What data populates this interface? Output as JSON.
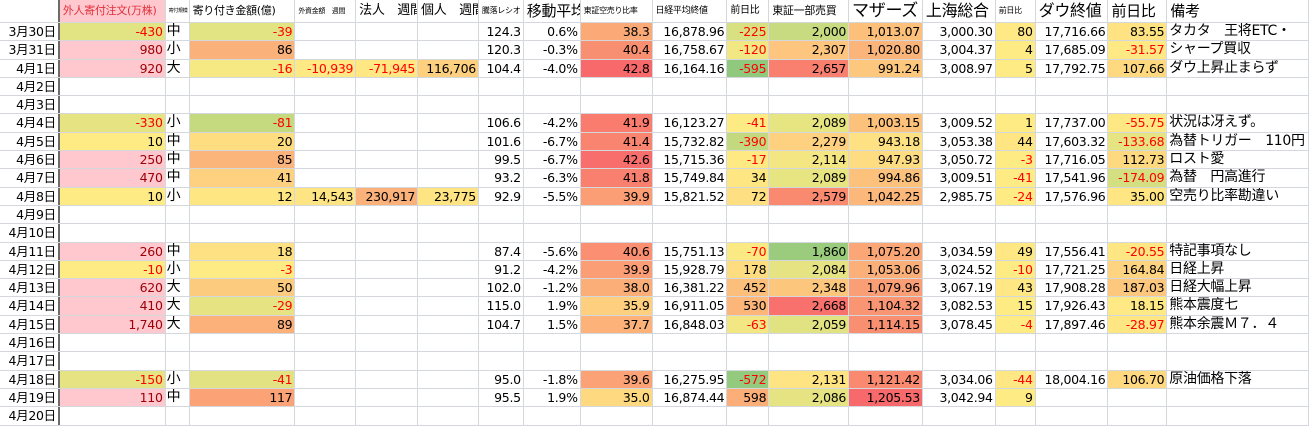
{
  "headers": [
    "",
    "外人寄付注文(万株)",
    "寄付規模",
    "寄り付き金額(億)",
    "外資金額　週間",
    "法人　週間",
    "個人　週間",
    "騰落レシオ",
    "移動平均",
    "東証空売り比率",
    "日経平均終値",
    "前日比",
    "東証一部売買",
    "マザーズ",
    "上海総合",
    "前日比",
    "ダウ終値",
    "前日比",
    "備考"
  ],
  "header_bg": {
    "1": "#ffc7ce"
  },
  "colors": {
    "pink": "#ffc7ce",
    "pink_text": "#9c0006",
    "negative_text": "#ff0000",
    "gridline": "#d4d7dc"
  },
  "rows": [
    {
      "cells": [
        "3月30日",
        "-430",
        "中",
        "-39",
        "",
        "",
        "",
        "124.3",
        "0.6%",
        "38.3",
        "16,878.96",
        "-225",
        "2,000",
        "1,013.07",
        "3,000.30",
        "80",
        "17,716.66",
        "83.55",
        "タカタ　王将ETC・"
      ],
      "bg": {
        "1": "#e2e383",
        "3": "#e2e383",
        "9": "#fbaa77",
        "11": "#d8e081",
        "12": "#c9db80",
        "13": "#fcc07b",
        "15": "#ffe984",
        "17": "#ffe383"
      }
    },
    {
      "cells": [
        "3月31日",
        "980",
        "小",
        "86",
        "",
        "",
        "",
        "120.3",
        "-0.3%",
        "40.4",
        "16,758.67",
        "-120",
        "2,307",
        "1,020.80",
        "3,004.37",
        "4",
        "17,685.09",
        "-31.57",
        "シャープ買収"
      ],
      "bg": {
        "1": "#ffc7ce",
        "3": "#fbb27a",
        "9": "#f98f71",
        "11": "#f1e783",
        "12": "#fdc57d",
        "13": "#fbb57a",
        "15": "#ffeb84",
        "17": "#ffe984"
      }
    },
    {
      "cells": [
        "4月1日",
        "920",
        "大",
        "-16",
        "-10,939",
        "-71,945",
        "116,706",
        "104.4",
        "-4.0%",
        "42.8",
        "16,164.16",
        "-595",
        "2,657",
        "991.24",
        "3,008.97",
        "5",
        "17,792.75",
        "107.66",
        "ダウ上昇止まらず"
      ],
      "bg": {
        "1": "#ffc7ce",
        "3": "#f6e883",
        "4": "#ffe985",
        "5": "#ffe784",
        "6": "#fdd07f",
        "9": "#f8696b",
        "11": "#90c97d",
        "12": "#f97f6e",
        "13": "#fdc87d",
        "15": "#ffeb84",
        "17": "#fed980"
      }
    },
    {
      "cells": [
        "4月2日"
      ],
      "bg": {}
    },
    {
      "cells": [
        "4月3日"
      ],
      "bg": {}
    },
    {
      "cells": [
        "4月4日",
        "-330",
        "小",
        "-81",
        "",
        "",
        "",
        "106.6",
        "-4.2%",
        "41.9",
        "16,123.27",
        "-41",
        "2,089",
        "1,003.15",
        "3,009.52",
        "1",
        "17,737.00",
        "-55.75",
        "状況は冴えず。"
      ],
      "bg": {
        "1": "#e5e382",
        "3": "#c5da7f",
        "9": "#f97c6e",
        "11": "#ffeb84",
        "12": "#e7e482",
        "13": "#fcc27c",
        "15": "#ffeb84",
        "17": "#fee883"
      }
    },
    {
      "cells": [
        "4月5日",
        "10",
        "中",
        "20",
        "",
        "",
        "",
        "101.6",
        "-6.7%",
        "41.4",
        "15,732.82",
        "-390",
        "2,279",
        "943.18",
        "3,053.38",
        "44",
        "17,603.32",
        "-133.68",
        "為替トリガー　110円"
      ],
      "bg": {
        "1": "#ffeb84",
        "3": "#fedd81",
        "9": "#f9846f",
        "11": "#c2d97f",
        "12": "#fdd17f",
        "13": "#fee182",
        "15": "#ffe683",
        "17": "#e6e382"
      }
    },
    {
      "cells": [
        "4月6日",
        "250",
        "中",
        "85",
        "",
        "",
        "",
        "99.5",
        "-6.7%",
        "42.6",
        "15,715.36",
        "-17",
        "2,114",
        "947.93",
        "3,050.72",
        "-3",
        "17,716.05",
        "112.73",
        "ロスト愛"
      ],
      "bg": {
        "1": "#ffc7ce",
        "3": "#fbb57a",
        "9": "#f86e6c",
        "11": "#fee983",
        "12": "#f4e783",
        "13": "#fedc81",
        "15": "#ffeb84",
        "17": "#fed980"
      }
    },
    {
      "cells": [
        "4月7日",
        "470",
        "中",
        "41",
        "",
        "",
        "",
        "93.2",
        "-6.3%",
        "41.8",
        "15,749.84",
        "34",
        "2,089",
        "994.86",
        "3,009.51",
        "-41",
        "17,541.96",
        "-174.09",
        "為替　円高進行"
      ],
      "bg": {
        "1": "#ffc7ce",
        "3": "#fdd17f",
        "9": "#f97f6e",
        "11": "#fee683",
        "12": "#e7e482",
        "13": "#fcc27c",
        "15": "#ffeb84",
        "17": "#d4df81"
      }
    },
    {
      "cells": [
        "4月8日",
        "10",
        "小",
        "12",
        "14,543",
        "230,917",
        "23,775",
        "92.9",
        "-5.5%",
        "39.9",
        "15,821.52",
        "72",
        "2,579",
        "1,042.25",
        "2,985.75",
        "-24",
        "17,576.96",
        "35.00",
        "空売り比率勘違い"
      ],
      "bg": {
        "1": "#ffeb84",
        "3": "#fee683",
        "4": "#fee482",
        "5": "#fbb27a",
        "6": "#fee482",
        "9": "#fb9e75",
        "11": "#fedf81",
        "12": "#f98a70",
        "13": "#fcb77a",
        "15": "#ffeb84",
        "17": "#ffe683"
      }
    },
    {
      "cells": [
        "4月9日"
      ],
      "bg": {}
    },
    {
      "cells": [
        "4月10日"
      ],
      "bg": {}
    },
    {
      "cells": [
        "4月11日",
        "260",
        "中",
        "18",
        "",
        "",
        "",
        "87.4",
        "-5.6%",
        "40.6",
        "15,751.13",
        "-70",
        "1,860",
        "1,075.20",
        "3,034.59",
        "49",
        "17,556.41",
        "-20.55",
        "特記事項なし"
      ],
      "bg": {
        "1": "#ffc7ce",
        "3": "#fee182",
        "9": "#fa8f71",
        "11": "#fbe983",
        "12": "#9bcc7d",
        "13": "#fba677",
        "15": "#ffe784",
        "17": "#fee683"
      }
    },
    {
      "cells": [
        "4月12日",
        "-10",
        "小",
        "-3",
        "",
        "",
        "",
        "91.2",
        "-4.2%",
        "39.9",
        "15,928.79",
        "178",
        "2,084",
        "1,053.06",
        "3,024.52",
        "-10",
        "17,721.25",
        "164.84",
        "日経上昇"
      ],
      "bg": {
        "1": "#ffeb84",
        "3": "#ffeb84",
        "9": "#fb9e75",
        "11": "#fedd81",
        "12": "#e6e382",
        "13": "#fbb079",
        "15": "#ffeb84",
        "17": "#fed480"
      }
    },
    {
      "cells": [
        "4月13日",
        "620",
        "大",
        "50",
        "",
        "",
        "",
        "102.0",
        "-1.2%",
        "38.0",
        "16,381.22",
        "452",
        "2,348",
        "1,079.96",
        "3,067.19",
        "43",
        "17,908.28",
        "187.03",
        "日経大幅上昇"
      ],
      "bg": {
        "1": "#ffc7ce",
        "3": "#fdcb7e",
        "9": "#fbae78",
        "11": "#fcbe7b",
        "12": "#fdc67d",
        "13": "#fa9f75",
        "15": "#ffe884",
        "17": "#fdc87d"
      }
    },
    {
      "cells": [
        "4月14日",
        "410",
        "大",
        "-29",
        "",
        "",
        "",
        "115.0",
        "1.9%",
        "35.9",
        "16,911.05",
        "530",
        "2,668",
        "1,104.32",
        "3,082.53",
        "15",
        "17,926.43",
        "18.15",
        "熊本震度七"
      ],
      "bg": {
        "1": "#ffc7ce",
        "3": "#e5e382",
        "9": "#fdcf7e",
        "11": "#fcb67a",
        "12": "#f8716c",
        "13": "#f99572",
        "15": "#ffeb84",
        "17": "#ffe984"
      }
    },
    {
      "cells": [
        "4月15日",
        "1,740",
        "大",
        "89",
        "",
        "",
        "",
        "104.7",
        "1.5%",
        "37.7",
        "16,848.03",
        "-63",
        "2,059",
        "1,114.15",
        "3,078.45",
        "-4",
        "17,897.46",
        "-28.97",
        "熊本余震Ｍ７．４"
      ],
      "bg": {
        "1": "#ffc7ce",
        "3": "#fbb179",
        "9": "#fcb279",
        "11": "#f3e783",
        "12": "#e1e282",
        "13": "#f98f71",
        "15": "#ffeb84",
        "17": "#fee683"
      }
    },
    {
      "cells": [
        "4月16日"
      ],
      "bg": {}
    },
    {
      "cells": [
        "4月17日"
      ],
      "bg": {}
    },
    {
      "cells": [
        "4月18日",
        "-150",
        "小",
        "-41",
        "",
        "",
        "",
        "95.0",
        "-1.8%",
        "39.6",
        "16,275.95",
        "-572",
        "2,131",
        "1,121.42",
        "3,034.06",
        "-44",
        "18,004.16",
        "106.70",
        "原油価格下落"
      ],
      "bg": {
        "1": "#e5e382",
        "3": "#e2e283",
        "9": "#fba276",
        "11": "#93ca7e",
        "12": "#fee482",
        "13": "#f98a70",
        "15": "#ffe784",
        "17": "#fed980"
      }
    },
    {
      "cells": [
        "4月19日",
        "110",
        "中",
        "117",
        "",
        "",
        "",
        "95.5",
        "1.9%",
        "35.0",
        "16,874.44",
        "598",
        "2,086",
        "1,205.53",
        "3,042.94",
        "9",
        "",
        "",
        ""
      ],
      "bg": {
        "1": "#ffc7ce",
        "3": "#fba276",
        "9": "#fed97f",
        "11": "#fcae78",
        "12": "#e5e382",
        "13": "#f8696b",
        "15": "#ffeb84"
      }
    },
    {
      "cells": [
        "4月20日"
      ],
      "bg": {}
    }
  ]
}
